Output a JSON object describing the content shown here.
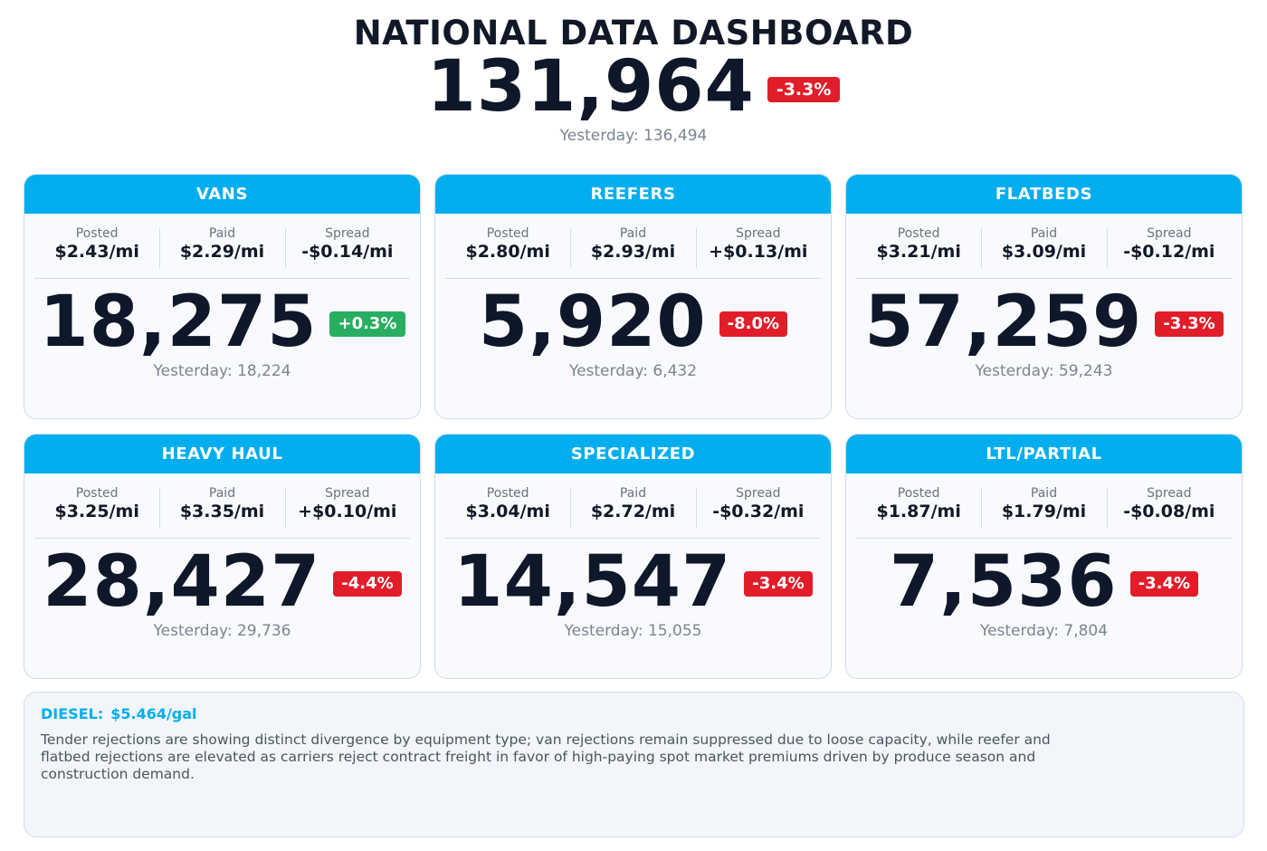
{
  "header": {
    "title": "NATIONAL DATA DASHBOARD",
    "total_value": "131,964",
    "total_change": "-3.3%",
    "total_change_direction": "down",
    "total_yesterday": "Yesterday: 136,494"
  },
  "labels": {
    "posted": "Posted",
    "paid": "Paid",
    "spread": "Spread"
  },
  "cards": [
    {
      "title": "VANS",
      "posted": "$2.43/mi",
      "paid": "$2.29/mi",
      "spread": "-$0.14/mi",
      "value": "18,275",
      "change": "+0.3%",
      "direction": "up",
      "yesterday": "Yesterday: 18,224"
    },
    {
      "title": "REEFERS",
      "posted": "$2.80/mi",
      "paid": "$2.93/mi",
      "spread": "+$0.13/mi",
      "value": "5,920",
      "change": "-8.0%",
      "direction": "down",
      "yesterday": "Yesterday: 6,432"
    },
    {
      "title": "FLATBEDS",
      "posted": "$3.21/mi",
      "paid": "$3.09/mi",
      "spread": "-$0.12/mi",
      "value": "57,259",
      "change": "-3.3%",
      "direction": "down",
      "yesterday": "Yesterday: 59,243"
    },
    {
      "title": "HEAVY HAUL",
      "posted": "$3.25/mi",
      "paid": "$3.35/mi",
      "spread": "+$0.10/mi",
      "value": "28,427",
      "change": "-4.4%",
      "direction": "down",
      "yesterday": "Yesterday: 29,736"
    },
    {
      "title": "SPECIALIZED",
      "posted": "$3.04/mi",
      "paid": "$2.72/mi",
      "spread": "-$0.32/mi",
      "value": "14,547",
      "change": "-3.4%",
      "direction": "down",
      "yesterday": "Yesterday: 15,055"
    },
    {
      "title": "LTL/PARTIAL",
      "posted": "$1.87/mi",
      "paid": "$1.79/mi",
      "spread": "-$0.08/mi",
      "value": "7,536",
      "change": "-3.4%",
      "direction": "down",
      "yesterday": "Yesterday: 7,804"
    }
  ],
  "notes": {
    "diesel_label": "DIESEL:",
    "diesel_value": "$5.464/gal",
    "text": "Tender rejections are showing distinct divergence by equipment type; van rejections remain suppressed due to loose capacity, while reefer and flatbed rejections are elevated as carriers reject contract freight in favor of high-paying spot market premiums driven by produce season and construction demand."
  },
  "colors": {
    "accent": "#00aeef",
    "down": "#e11d2a",
    "up": "#27ae60",
    "text_dark": "#0f172a",
    "text_muted": "#7b8594"
  }
}
